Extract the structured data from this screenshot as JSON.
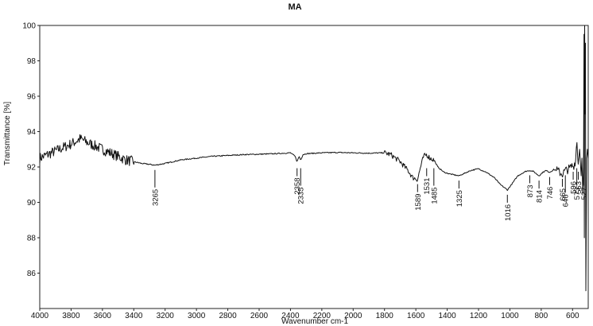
{
  "chart_data": {
    "type": "line",
    "title": "MA",
    "xlabel": "Wavenumber cm-1",
    "ylabel": "Transmittance [%]",
    "xlim": [
      4000,
      500
    ],
    "ylim": [
      84,
      100
    ],
    "x_reversed": true,
    "x_ticks": [
      4000,
      3800,
      3600,
      3400,
      3200,
      3000,
      2800,
      2600,
      2400,
      2200,
      2000,
      1800,
      1600,
      1400,
      1200,
      1000,
      800,
      600
    ],
    "y_ticks": [
      86,
      88,
      90,
      92,
      94,
      96,
      98,
      100
    ],
    "grid": false,
    "series": [
      {
        "x": [
          4000,
          3950,
          3900,
          3850,
          3800,
          3760,
          3740,
          3700,
          3650,
          3600,
          3550,
          3500,
          3450,
          3400,
          3350,
          3300,
          3265,
          3200,
          3100,
          3000,
          2900,
          2800,
          2700,
          2600,
          2500,
          2400,
          2370,
          2358,
          2345,
          2335,
          2320,
          2300,
          2200,
          2100,
          2000,
          1900,
          1800,
          1760,
          1700,
          1650,
          1620,
          1589,
          1570,
          1550,
          1531,
          1510,
          1485,
          1460,
          1420,
          1380,
          1325,
          1300,
          1250,
          1200,
          1150,
          1100,
          1060,
          1030,
          1016,
          990,
          950,
          900,
          873,
          850,
          814,
          790,
          770,
          746,
          720,
          700,
          665,
          646,
          620,
          600,
          596,
          580,
          573,
          563,
          555,
          545,
          540,
          535,
          530,
          527,
          525,
          523,
          520,
          518,
          515,
          510,
          505,
          500
        ],
        "y": [
          92.5,
          92.7,
          92.9,
          93.1,
          93.3,
          93.5,
          93.6,
          93.4,
          93.2,
          93.0,
          92.8,
          92.6,
          92.4,
          92.3,
          92.2,
          92.15,
          92.1,
          92.2,
          92.4,
          92.5,
          92.6,
          92.65,
          92.7,
          92.72,
          92.75,
          92.8,
          92.6,
          92.3,
          92.6,
          92.4,
          92.7,
          92.75,
          92.8,
          92.82,
          92.8,
          92.78,
          92.8,
          92.7,
          92.3,
          91.8,
          91.4,
          91.3,
          92.0,
          92.6,
          92.7,
          92.5,
          92.4,
          92.0,
          91.7,
          91.6,
          91.5,
          91.6,
          91.8,
          91.9,
          91.7,
          91.4,
          91.0,
          90.8,
          90.7,
          91.0,
          91.5,
          91.75,
          91.8,
          91.75,
          91.5,
          91.7,
          91.8,
          91.7,
          91.85,
          91.8,
          91.6,
          91.8,
          91.9,
          92.1,
          92.0,
          92.4,
          93.6,
          92.0,
          93.0,
          91.5,
          92.5,
          90.5,
          92.0,
          99.5,
          88.0,
          100.0,
          95.0,
          99.0,
          85.0,
          92.5,
          93.0,
          92.5
        ],
        "noise": [
          [
            4000,
            3400,
            0.3
          ],
          [
            1800,
            1480,
            0.15
          ],
          [
            700,
            540,
            0.25
          ]
        ]
      }
    ],
    "annotations": [
      {
        "label": "3265",
        "x": 3265
      },
      {
        "label": "2358",
        "x": 2358
      },
      {
        "label": "2335",
        "x": 2335
      },
      {
        "label": "1589",
        "x": 1589
      },
      {
        "label": "1531",
        "x": 1531
      },
      {
        "label": "1485",
        "x": 1485
      },
      {
        "label": "1325",
        "x": 1325
      },
      {
        "label": "1016",
        "x": 1016
      },
      {
        "label": "873",
        "x": 873
      },
      {
        "label": "814",
        "x": 814
      },
      {
        "label": "746",
        "x": 746
      },
      {
        "label": "665",
        "x": 665
      },
      {
        "label": "646",
        "x": 646
      },
      {
        "label": "596",
        "x": 596
      },
      {
        "label": "573",
        "x": 573
      },
      {
        "label": "563",
        "x": 563
      },
      {
        "label": "527",
        "x": 527
      }
    ]
  }
}
